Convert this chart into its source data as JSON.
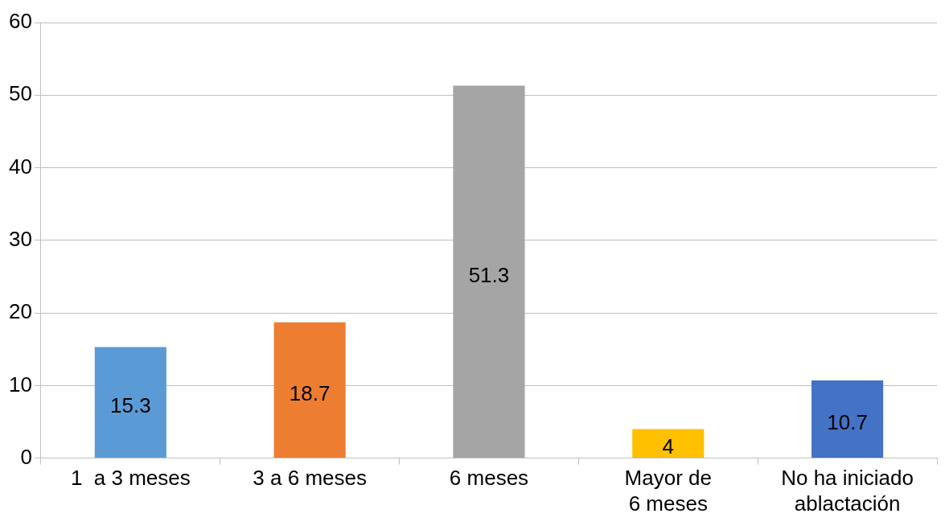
{
  "chart_data": {
    "type": "bar",
    "categories": [
      "1  a 3 meses",
      "3 a 6 meses",
      "6 meses",
      "Mayor de 6 meses",
      "No ha iniciado ablactación"
    ],
    "values": [
      15.3,
      18.7,
      51.3,
      4,
      10.7
    ],
    "colors": [
      "#5b9bd5",
      "#ed7d31",
      "#a5a5a5",
      "#ffc000",
      "#4472c4"
    ],
    "ylim": [
      0,
      60
    ],
    "yticks": [
      0,
      10,
      20,
      30,
      40,
      50,
      60
    ],
    "grid": "y",
    "data_labels": true,
    "legend": false
  }
}
